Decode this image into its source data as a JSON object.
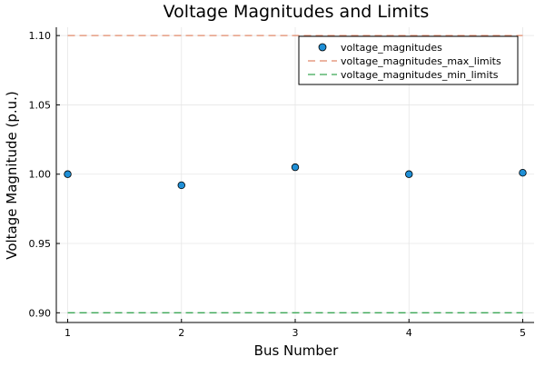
{
  "chart_data": {
    "type": "scatter",
    "title": "Voltage Magnitudes and Limits",
    "xlabel": "Bus Number",
    "ylabel": "Voltage Magnitude (p.u.)",
    "x": [
      1,
      2,
      3,
      4,
      5
    ],
    "xlim": [
      0.9,
      5.1
    ],
    "ylim": [
      0.893,
      1.106
    ],
    "xticks": [
      1,
      2,
      3,
      4,
      5
    ],
    "xtick_labels": [
      "1",
      "2",
      "3",
      "4",
      "5"
    ],
    "yticks": [
      0.9,
      0.95,
      1.0,
      1.05,
      1.1
    ],
    "ytick_labels": [
      "0.90",
      "0.95",
      "1.00",
      "1.05",
      "1.10"
    ],
    "grid": true,
    "legend_position": "top-right",
    "series": [
      {
        "name": "voltage_magnitudes",
        "kind": "scatter",
        "color": "#1f8fd6",
        "values": [
          1.0,
          0.992,
          1.005,
          1.0,
          1.001
        ]
      },
      {
        "name": "voltage_magnitudes_max_limits",
        "kind": "dashed-line",
        "color": "#e0886a",
        "values": [
          1.1,
          1.1,
          1.1,
          1.1,
          1.1
        ]
      },
      {
        "name": "voltage_magnitudes_min_limits",
        "kind": "dashed-line",
        "color": "#3aa655",
        "values": [
          0.9,
          0.9,
          0.9,
          0.9,
          0.9
        ]
      }
    ]
  }
}
